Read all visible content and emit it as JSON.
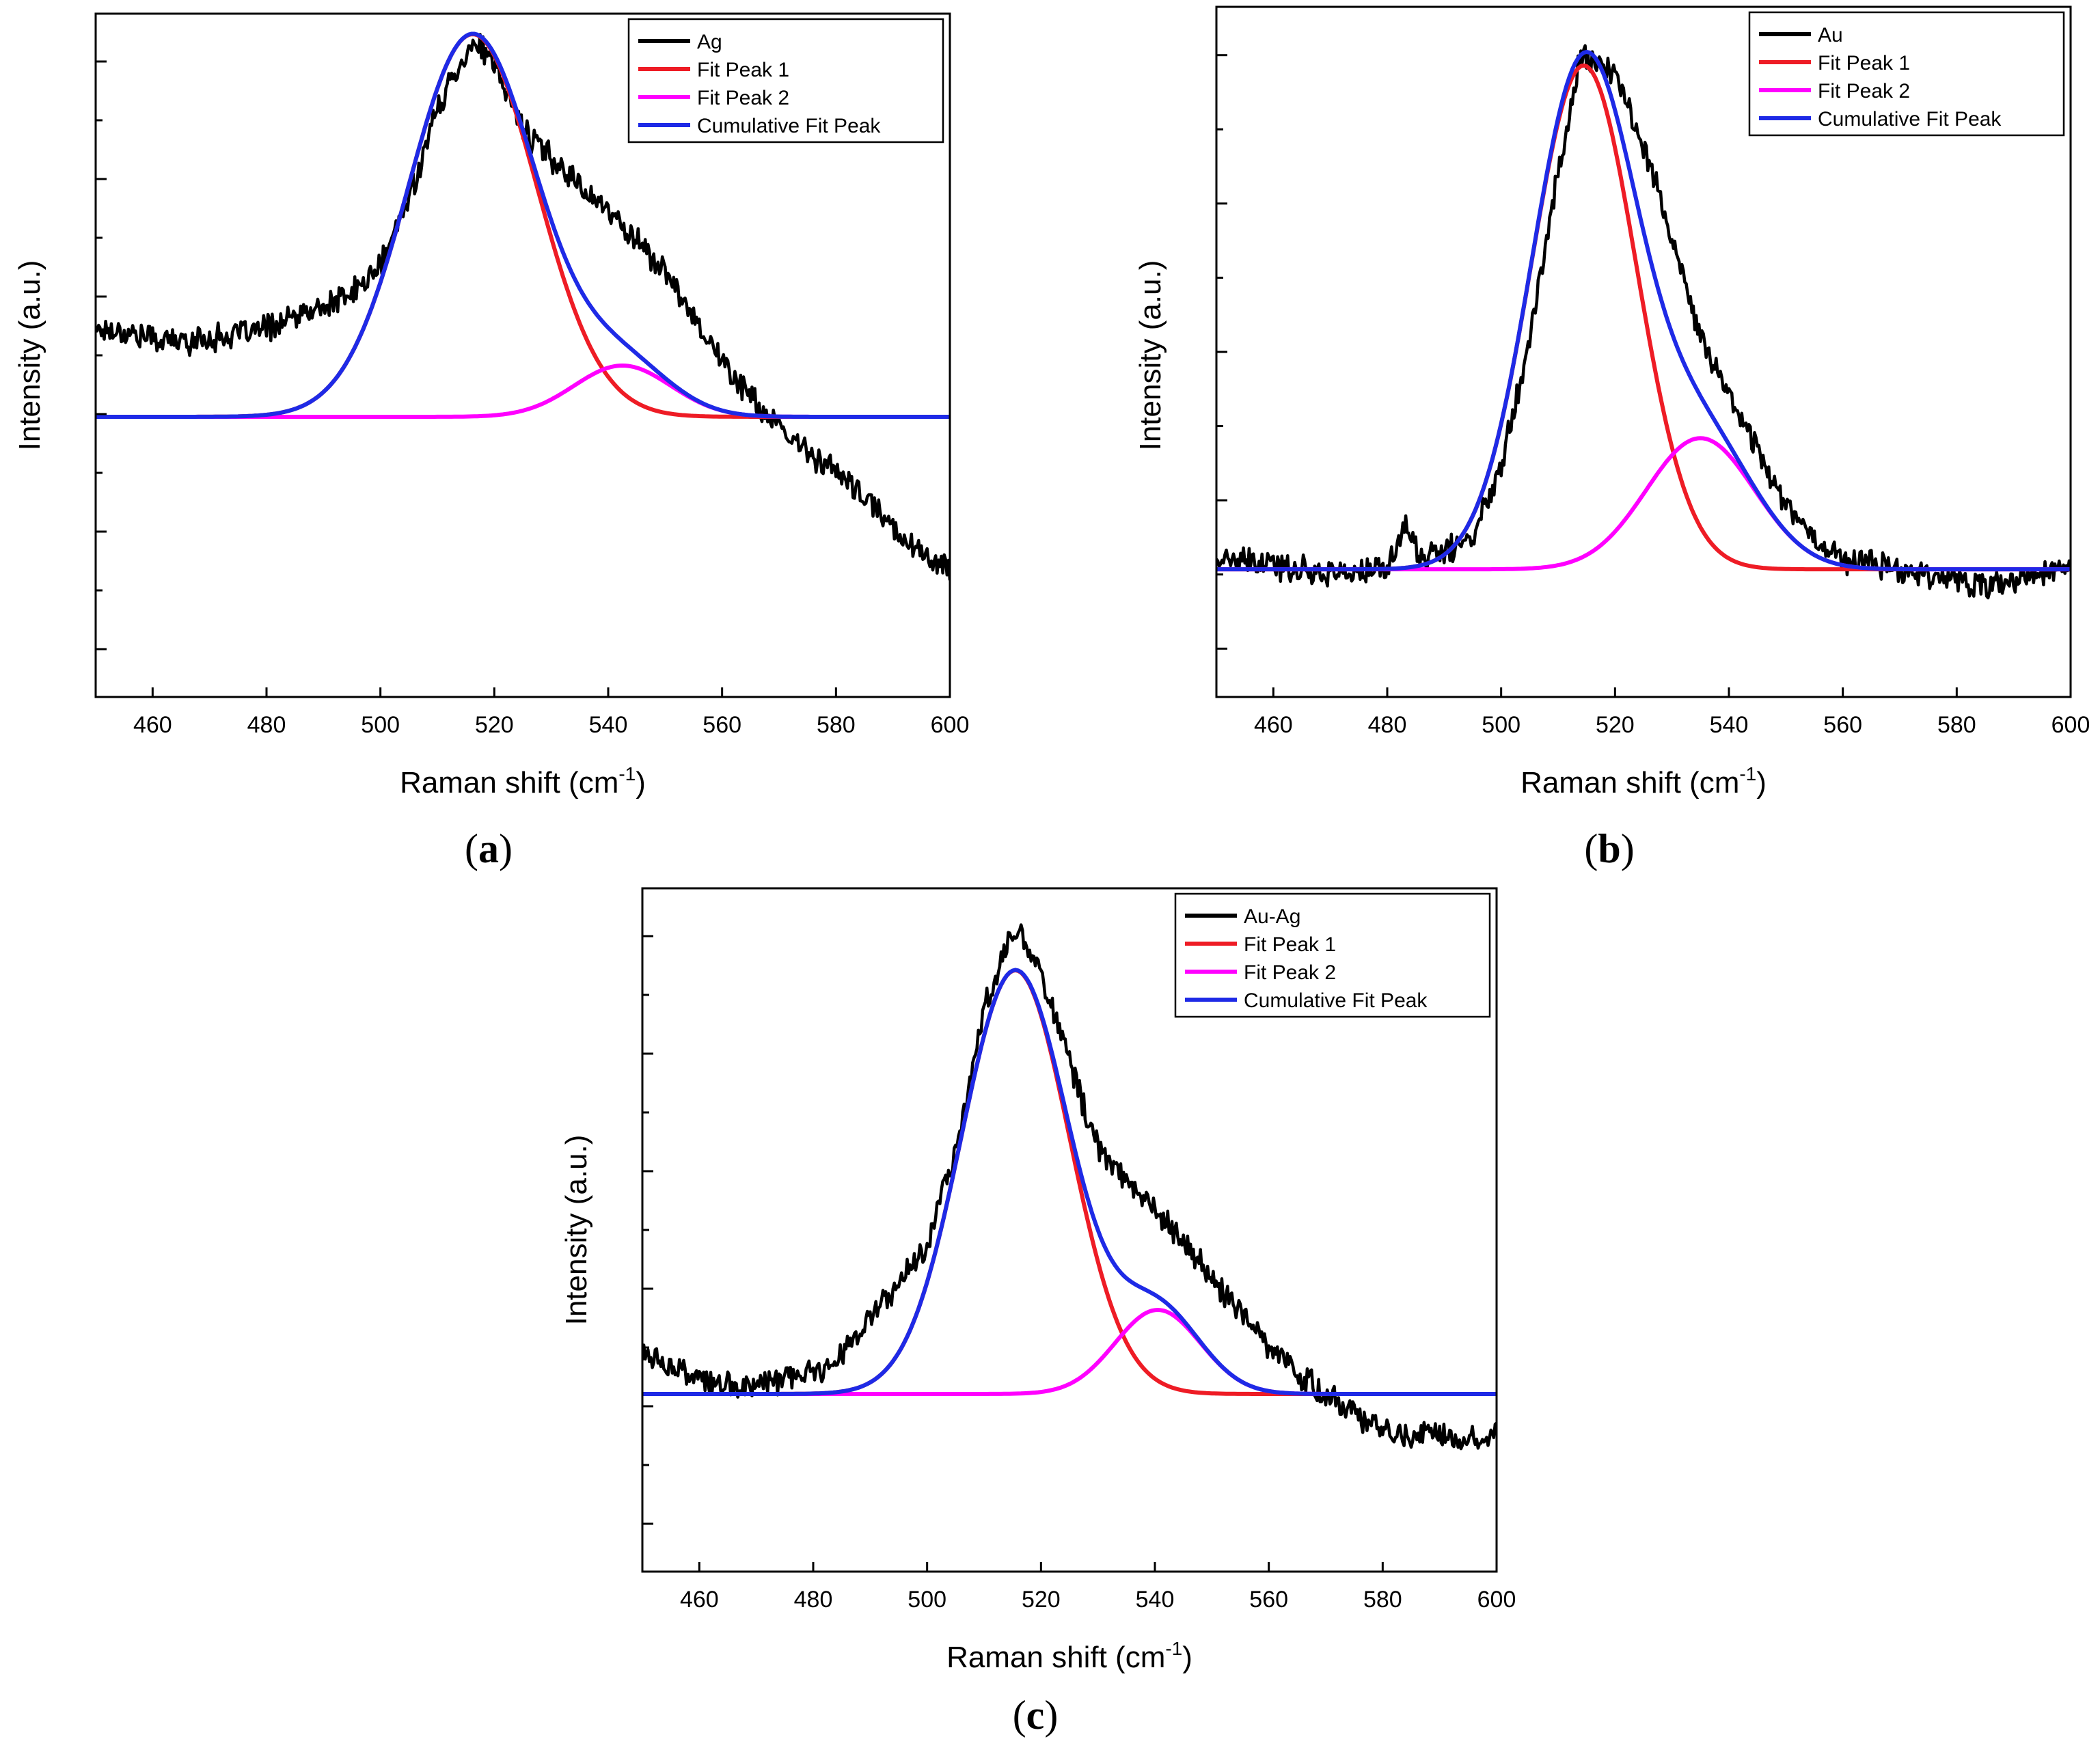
{
  "figure": {
    "x_axis_label_base": "Raman shift (cm",
    "x_axis_label_sup": "-1",
    "x_axis_label_close": ")",
    "y_axis_label": "Intensity (a.u.)"
  },
  "colors": {
    "data": "#000000",
    "fit_peak_1": "#ee1c25",
    "fit_peak_2": "#ff00ff",
    "cumulative": "#1e2ae6"
  },
  "chart_data": [
    {
      "id": "a",
      "type": "line",
      "label_open": "(",
      "label_letter": "a",
      "label_close": ")",
      "xlabel": "Raman shift (cm-1)",
      "ylabel": "Intensity (a.u.)",
      "xlim": [
        450,
        600
      ],
      "ylim": [
        0,
        100
      ],
      "x_ticks": [
        460,
        480,
        500,
        520,
        540,
        560,
        580,
        600
      ],
      "y_ticks_count": 11,
      "legend_position": "top-right",
      "series": [
        {
          "name": "Ag",
          "kind": "data",
          "color": "#000000",
          "points": [
            [
              450,
              54
            ],
            [
              455,
              53.5
            ],
            [
              460,
              52.5
            ],
            [
              465,
              52
            ],
            [
              470,
              52.5
            ],
            [
              475,
              53
            ],
            [
              480,
              54
            ],
            [
              485,
              55.5
            ],
            [
              490,
              57
            ],
            [
              495,
              59
            ],
            [
              500,
              63
            ],
            [
              505,
              73
            ],
            [
              510,
              86
            ],
            [
              514,
              93
            ],
            [
              517,
              96
            ],
            [
              520,
              92
            ],
            [
              523,
              87
            ],
            [
              526,
              82
            ],
            [
              530,
              79
            ],
            [
              535,
              75
            ],
            [
              540,
              71
            ],
            [
              545,
              67
            ],
            [
              550,
              62
            ],
            [
              555,
              56
            ],
            [
              560,
              49
            ],
            [
              565,
              44
            ],
            [
              570,
              39
            ],
            [
              575,
              36
            ],
            [
              580,
              33
            ],
            [
              585,
              29
            ],
            [
              590,
              25
            ],
            [
              595,
              21
            ],
            [
              600,
              19
            ]
          ]
        },
        {
          "name": "Fit Peak 1",
          "kind": "gauss",
          "color": "#ee1c25",
          "baseline": 41,
          "amp": 56,
          "center": 516.2,
          "sigma": 11.2
        },
        {
          "name": "Fit Peak 2",
          "kind": "gauss",
          "color": "#ff00ff",
          "baseline": 41,
          "amp": 7.5,
          "center": 542.5,
          "sigma": 8.5
        },
        {
          "name": "Cumulative Fit Peak",
          "kind": "sum",
          "color": "#1e2ae6"
        }
      ]
    },
    {
      "id": "b",
      "type": "line",
      "label_open": "(",
      "label_letter": "b",
      "label_close": ")",
      "xlabel": "Raman shift (cm-1)",
      "ylabel": "Intensity (a.u.)",
      "xlim": [
        450,
        600
      ],
      "ylim": [
        0,
        100
      ],
      "x_ticks": [
        460,
        480,
        500,
        520,
        540,
        560,
        580,
        600
      ],
      "y_ticks_count": 9,
      "legend_position": "top-right",
      "series": [
        {
          "name": "Au",
          "kind": "data",
          "color": "#000000",
          "points": [
            [
              450,
              20
            ],
            [
              455,
              19.5
            ],
            [
              460,
              19
            ],
            [
              465,
              18.5
            ],
            [
              470,
              18
            ],
            [
              475,
              18
            ],
            [
              480,
              18.5
            ],
            [
              483,
              25
            ],
            [
              486,
              20
            ],
            [
              490,
              21
            ],
            [
              495,
              23
            ],
            [
              500,
              34
            ],
            [
              505,
              52
            ],
            [
              510,
              76
            ],
            [
              514,
              93
            ],
            [
              517,
              92
            ],
            [
              520,
              90
            ],
            [
              523,
              84
            ],
            [
              526,
              78
            ],
            [
              530,
              66
            ],
            [
              535,
              52
            ],
            [
              540,
              44
            ],
            [
              545,
              36
            ],
            [
              550,
              28
            ],
            [
              555,
              23
            ],
            [
              560,
              20
            ],
            [
              565,
              19.5
            ],
            [
              570,
              18.5
            ],
            [
              575,
              18
            ],
            [
              580,
              17
            ],
            [
              585,
              16
            ],
            [
              590,
              16.5
            ],
            [
              595,
              18
            ],
            [
              600,
              19
            ]
          ]
        },
        {
          "name": "Fit Peak 1",
          "kind": "gauss",
          "color": "#ee1c25",
          "baseline": 18.5,
          "amp": 73,
          "center": 514.5,
          "sigma": 9.2
        },
        {
          "name": "Fit Peak 2",
          "kind": "gauss",
          "color": "#ff00ff",
          "baseline": 18.5,
          "amp": 19,
          "center": 535,
          "sigma": 9.5
        },
        {
          "name": "Cumulative Fit Peak",
          "kind": "sum",
          "color": "#1e2ae6"
        }
      ]
    },
    {
      "id": "c",
      "type": "line",
      "label_open": "(",
      "label_letter": "c",
      "label_close": ")",
      "xlabel": "Raman shift (cm-1)",
      "ylabel": "Intensity (a.u.)",
      "xlim": [
        450,
        600
      ],
      "ylim": [
        0,
        100
      ],
      "x_ticks": [
        460,
        480,
        500,
        520,
        540,
        560,
        580,
        600
      ],
      "y_ticks_count": 11,
      "legend_position": "top-right",
      "series": [
        {
          "name": "Au-Ag",
          "kind": "data",
          "color": "#000000",
          "points": [
            [
              450,
              32
            ],
            [
              455,
              30
            ],
            [
              460,
              28
            ],
            [
              465,
              27
            ],
            [
              470,
              27.5
            ],
            [
              475,
              28
            ],
            [
              480,
              29
            ],
            [
              485,
              32
            ],
            [
              490,
              37
            ],
            [
              495,
              42
            ],
            [
              500,
              48
            ],
            [
              505,
              62
            ],
            [
              510,
              82
            ],
            [
              514,
              92
            ],
            [
              516,
              94
            ],
            [
              520,
              88
            ],
            [
              523,
              80
            ],
            [
              526,
              72
            ],
            [
              530,
              62
            ],
            [
              535,
              57
            ],
            [
              540,
              53
            ],
            [
              545,
              48
            ],
            [
              550,
              43
            ],
            [
              555,
              38
            ],
            [
              560,
              33
            ],
            [
              565,
              29
            ],
            [
              570,
              26
            ],
            [
              575,
              23
            ],
            [
              580,
              21
            ],
            [
              585,
              20
            ],
            [
              590,
              20
            ],
            [
              595,
              19.5
            ],
            [
              600,
              21
            ]
          ]
        },
        {
          "name": "Fit Peak 1",
          "kind": "gauss",
          "color": "#ee1c25",
          "baseline": 26,
          "amp": 62,
          "center": 515.5,
          "sigma": 9.5
        },
        {
          "name": "Fit Peak 2",
          "kind": "gauss",
          "color": "#ff00ff",
          "baseline": 26,
          "amp": 12.3,
          "center": 540.5,
          "sigma": 7.5
        },
        {
          "name": "Cumulative Fit Peak",
          "kind": "sum",
          "color": "#1e2ae6"
        }
      ]
    }
  ]
}
